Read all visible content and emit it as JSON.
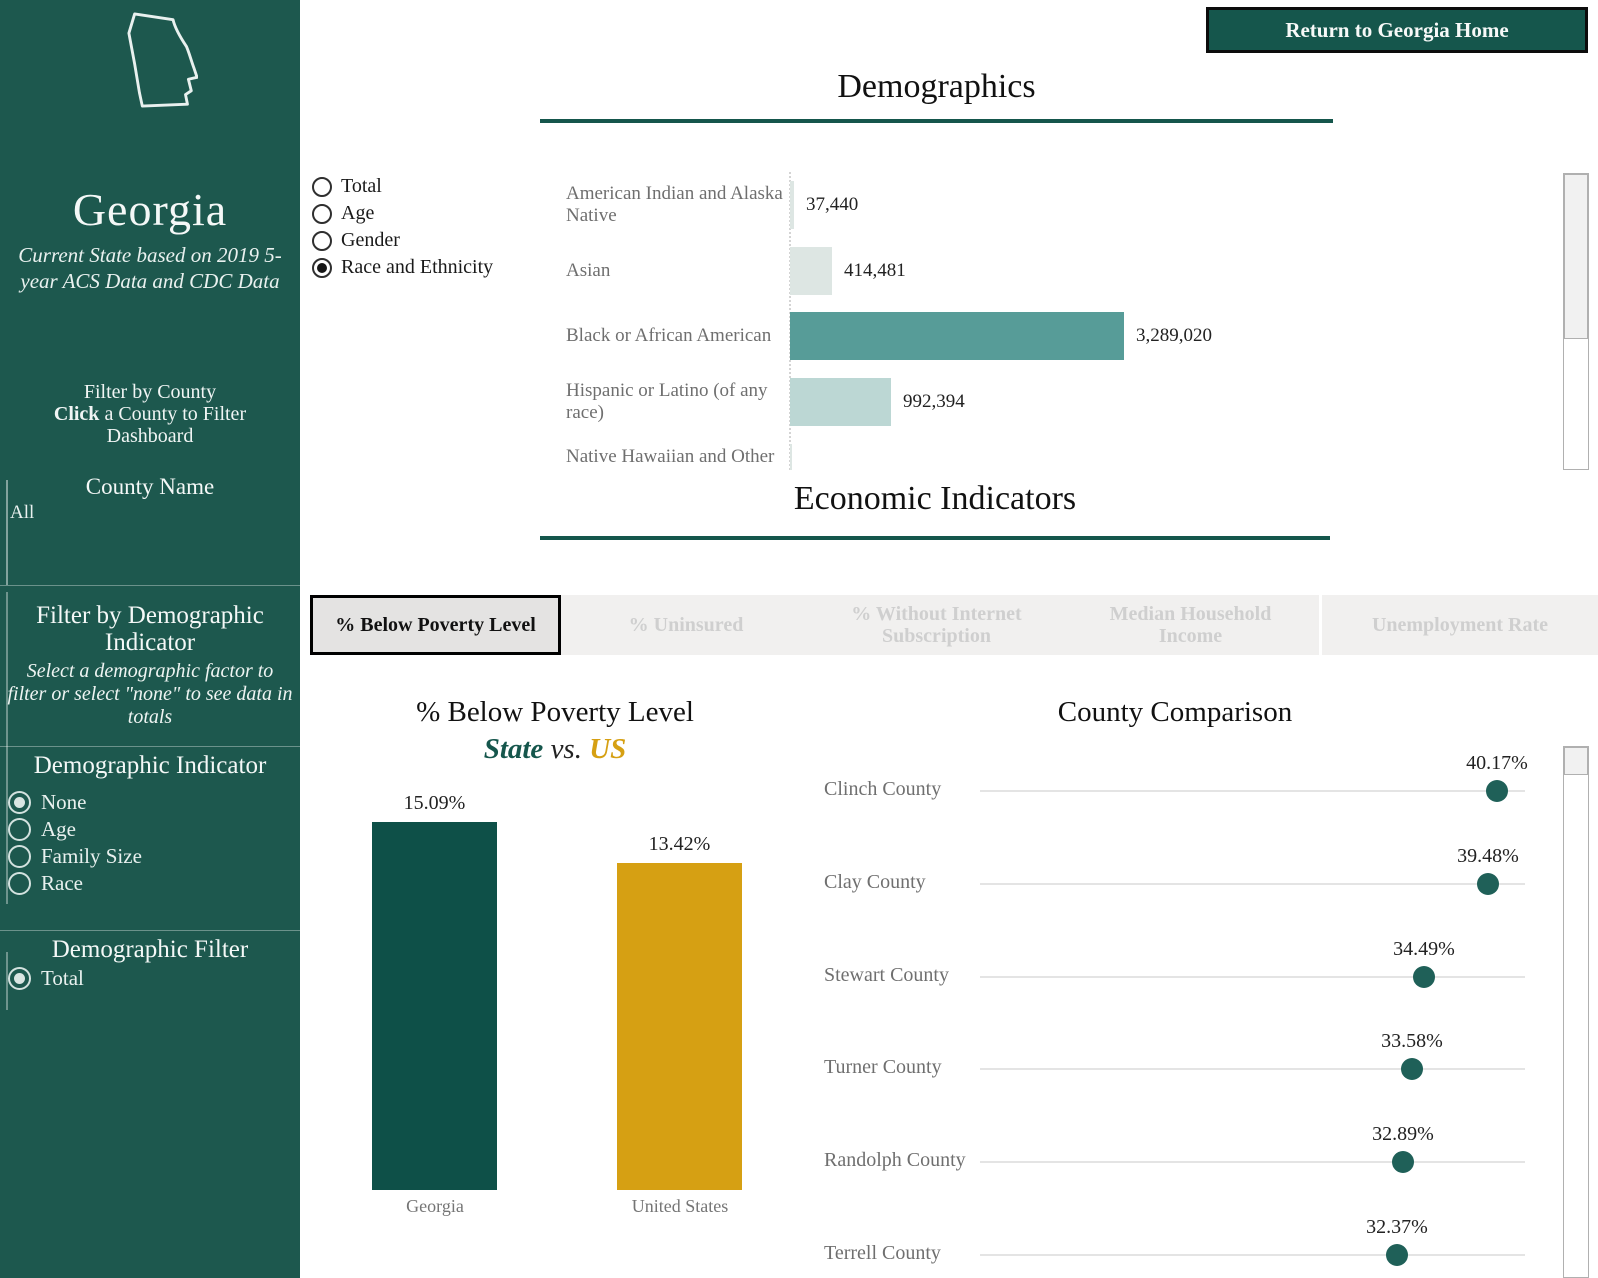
{
  "colors": {
    "sidebar_bg": "#1d584e",
    "accent_teal": "#15564c",
    "bar_teal_dark": "#0e5048",
    "bar_teal_medium": "#579c98",
    "bar_teal_light": "#bcd7d4",
    "bar_gray_light": "#dde6e3",
    "gold": "#d6a013",
    "dot_teal": "#1f6058"
  },
  "header": {
    "return_button": "Return to Georgia Home"
  },
  "sidebar": {
    "state_name": "Georgia",
    "subtitle": "Current State based on 2019 5-year ACS Data and CDC Data",
    "filter_by_county": {
      "line1": "Filter by County",
      "line2_bold": "Click",
      "line2_rest": " a County to Filter",
      "line3": "Dashboard"
    },
    "county_filter": {
      "header": "County Name",
      "selected_value": "All"
    },
    "filter_by_demographic": {
      "title_line1": "Filter by Demographic",
      "title_line2": "Indicator",
      "subtitle": "Select a demographic factor to filter or select \"none\" to see data in totals"
    },
    "demographic_indicator": {
      "header": "Demographic Indicator",
      "options": [
        {
          "label": "None",
          "selected": true
        },
        {
          "label": "Age",
          "selected": false
        },
        {
          "label": "Family Size",
          "selected": false
        },
        {
          "label": "Race",
          "selected": false
        }
      ]
    },
    "demographic_filter": {
      "header": "Demographic Filter",
      "options": [
        {
          "label": "Total",
          "selected": true
        }
      ]
    }
  },
  "demographics": {
    "title": "Demographics",
    "view_options": [
      {
        "label": "Total",
        "selected": false
      },
      {
        "label": "Age",
        "selected": false
      },
      {
        "label": "Gender",
        "selected": false
      },
      {
        "label": "Race and Ethnicity",
        "selected": true
      }
    ],
    "rows": [
      {
        "label": "American Indian and Alaska Native",
        "value": 37440,
        "value_label": "37,440",
        "color": "#dde6e3"
      },
      {
        "label": "Asian",
        "value": 414481,
        "value_label": "414,481",
        "color": "#dde6e3"
      },
      {
        "label": "Black or African American",
        "value": 3289020,
        "value_label": "3,289,020",
        "color": "#579c98"
      },
      {
        "label": "Hispanic or Latino (of any race)",
        "value": 992394,
        "value_label": "992,394",
        "color": "#bcd7d4"
      },
      {
        "label": "Native Hawaiian and Other Pacific Islander",
        "value": null,
        "value_label": "",
        "color": "#dde6e3"
      }
    ]
  },
  "economic": {
    "title": "Economic Indicators",
    "tabs": [
      {
        "label": "% Below Poverty Level",
        "active": true
      },
      {
        "label": "% Uninsured",
        "active": false
      },
      {
        "label": "% Without Internet Subscription",
        "active": false
      },
      {
        "label": "Median Household Income",
        "active": false
      },
      {
        "label": "Unemployment Rate",
        "active": false
      }
    ],
    "poverty_chart": {
      "title": "% Below Poverty Level",
      "subtitle_state": "State",
      "subtitle_vs": " vs. ",
      "subtitle_us": "US",
      "bars": [
        {
          "label": "Georgia",
          "value": 15.09,
          "value_label": "15.09%"
        },
        {
          "label": "United States",
          "value": 13.42,
          "value_label": "13.42%"
        }
      ]
    },
    "county_comparison": {
      "title": "County Comparison",
      "rows": [
        {
          "label": "Clinch County",
          "value": 40.17,
          "value_label": "40.17%"
        },
        {
          "label": "Clay County",
          "value": 39.48,
          "value_label": "39.48%"
        },
        {
          "label": "Stewart County",
          "value": 34.49,
          "value_label": "34.49%"
        },
        {
          "label": "Turner County",
          "value": 33.58,
          "value_label": "33.58%"
        },
        {
          "label": "Randolph County",
          "value": 32.89,
          "value_label": "32.89%"
        },
        {
          "label": "Terrell County",
          "value": 32.37,
          "value_label": "32.37%"
        }
      ]
    }
  },
  "chart_data": [
    {
      "type": "bar",
      "orientation": "horizontal",
      "title": "Demographics (Race and Ethnicity)",
      "categories": [
        "American Indian and Alaska Native",
        "Asian",
        "Black or African American",
        "Hispanic or Latino (of any race)",
        "Native Hawaiian and Other Pacific Islander"
      ],
      "values": [
        37440,
        414481,
        3289020,
        992394,
        null
      ],
      "xlabel": "",
      "ylabel": "",
      "grid": false
    },
    {
      "type": "bar",
      "title": "% Below Poverty Level State vs. US",
      "categories": [
        "Georgia",
        "United States"
      ],
      "values": [
        15.09,
        13.42
      ],
      "ylabel": "% Below Poverty Level",
      "ylim": [
        0,
        16
      ],
      "grid": false
    },
    {
      "type": "scatter",
      "title": "County Comparison",
      "categories": [
        "Clinch County",
        "Clay County",
        "Stewart County",
        "Turner County",
        "Randolph County",
        "Terrell County"
      ],
      "values": [
        40.17,
        39.48,
        34.49,
        33.58,
        32.89,
        32.37
      ],
      "xlim": [
        0,
        42
      ],
      "unit": "%",
      "grid": true
    }
  ]
}
